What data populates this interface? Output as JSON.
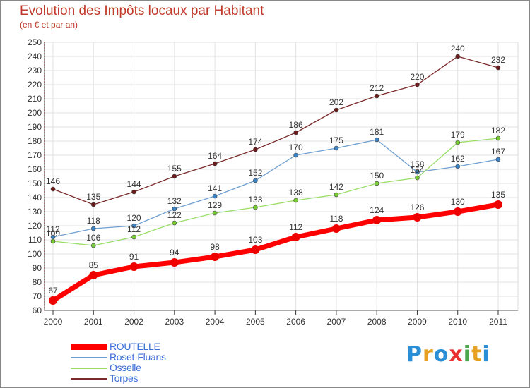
{
  "chart_data": {
    "type": "line",
    "title": "Evolution des Impôts locaux par Habitant",
    "subtitle": "(en € et par an)",
    "xlabel": "",
    "ylabel": "",
    "categories": [
      "2000",
      "2001",
      "2002",
      "2003",
      "2004",
      "2005",
      "2006",
      "2007",
      "2008",
      "2009",
      "2010",
      "2011"
    ],
    "ylim": [
      60,
      250
    ],
    "yticks": [
      60,
      70,
      80,
      90,
      100,
      110,
      120,
      130,
      140,
      150,
      160,
      170,
      180,
      190,
      200,
      210,
      220,
      230,
      240,
      250
    ],
    "grid": true,
    "legend_position": "bottom-left",
    "series": [
      {
        "name": "ROUTELLE",
        "color": "#ff0000",
        "values": [
          67,
          85,
          91,
          94,
          98,
          103,
          112,
          118,
          124,
          126,
          130,
          135
        ]
      },
      {
        "name": "Roset-Fluans",
        "color": "#6f9fd0",
        "values": [
          112,
          118,
          120,
          132,
          141,
          152,
          170,
          175,
          181,
          158,
          162,
          167
        ]
      },
      {
        "name": "Osselle",
        "color": "#99dd66",
        "values": [
          109,
          106,
          112,
          122,
          129,
          133,
          138,
          142,
          150,
          154,
          179,
          182
        ]
      },
      {
        "name": "Torpes",
        "color": "#7a2a2a",
        "values": [
          146,
          135,
          144,
          155,
          164,
          174,
          186,
          202,
          212,
          220,
          240,
          232
        ]
      }
    ]
  },
  "logo": {
    "letters": [
      "P",
      "r",
      "o",
      "x",
      "i",
      "t",
      "i"
    ],
    "colors": [
      "#2a8fd6",
      "#e8a020",
      "#2a8fd6",
      "#e83030",
      "#49a84a",
      "#e8a020",
      "#2a8fd6"
    ]
  }
}
